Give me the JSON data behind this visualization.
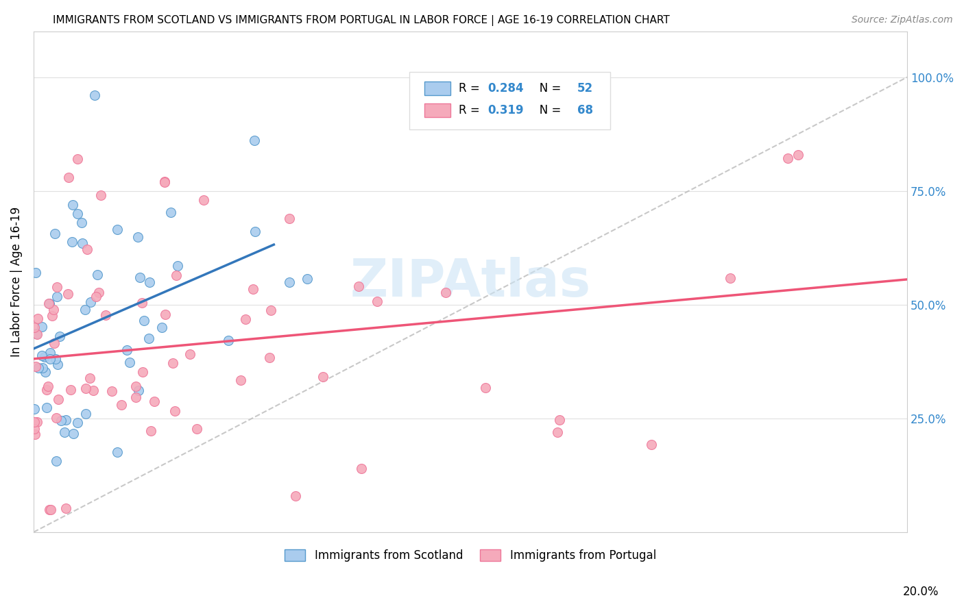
{
  "title": "IMMIGRANTS FROM SCOTLAND VS IMMIGRANTS FROM PORTUGAL IN LABOR FORCE | AGE 16-19 CORRELATION CHART",
  "source": "Source: ZipAtlas.com",
  "ylabel": "In Labor Force | Age 16-19",
  "xlim": [
    0.0,
    0.2
  ],
  "ylim": [
    0.0,
    1.1
  ],
  "scotland_color": "#aaccee",
  "portugal_color": "#f5aabb",
  "scotland_edge_color": "#5599cc",
  "portugal_edge_color": "#ee7799",
  "scotland_line_color": "#3377bb",
  "portugal_line_color": "#ee5577",
  "ref_line_color": "#bbbbbb",
  "watermark_color": "#cce4f5",
  "grid_color": "#e0e0e0",
  "background_color": "#ffffff",
  "right_ytick_color": "#3388cc",
  "scotland_R": 0.284,
  "scotland_N": 52,
  "portugal_R": 0.319,
  "portugal_N": 68
}
